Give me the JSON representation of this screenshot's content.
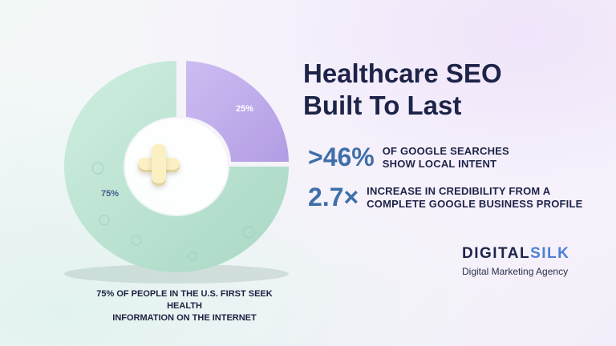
{
  "headline": {
    "line1": "Healthcare SEO",
    "line2": "Built To Last"
  },
  "chart_data": {
    "type": "pie",
    "categories": [
      "25%",
      "75%"
    ],
    "values": [
      25,
      75
    ],
    "labels": [
      "25%",
      "75%"
    ]
  },
  "donut": {
    "label_25": "25%",
    "label_75": "75%",
    "icon": "plus-icon",
    "colors": {
      "small_slice": "#c2b1ec",
      "large_slice": "#bfe3d3"
    }
  },
  "caption": {
    "line1": "75% of people in the U.S. first seek health",
    "line2": "information on the internet"
  },
  "stats": [
    {
      "value": ">46%",
      "line1": "of Google searches",
      "line2": "show local intent"
    },
    {
      "value": "2.7×",
      "line1": "increase in credibility from a",
      "line2": "complete Google Business Profile"
    }
  ],
  "logo": {
    "brand_part1": "DIGITAL",
    "brand_part2": "SILK",
    "tagline": "Digital Marketing Agency",
    "accent_color": "#4c7fd6"
  }
}
